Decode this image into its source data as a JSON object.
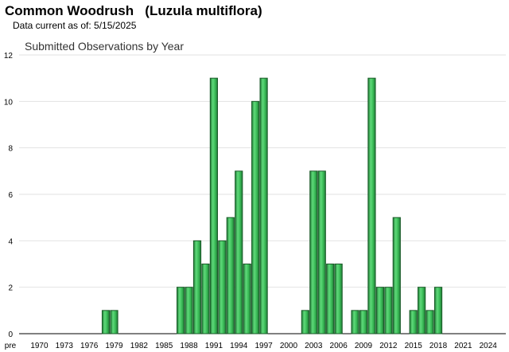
{
  "header": {
    "title": "Common Woodrush   (Luzula multiflora)",
    "data_current": "Data current as of: 5/15/2025"
  },
  "chart_data": {
    "type": "bar",
    "title": "Submitted Observations by Year",
    "xlabel": "",
    "ylabel": "",
    "ylim": [
      0,
      12
    ],
    "yticks": [
      0,
      2,
      4,
      6,
      8,
      10,
      12
    ],
    "grid": true,
    "x_tick_labels": [
      "pre",
      "1970",
      "1973",
      "1976",
      "1979",
      "1982",
      "1985",
      "1988",
      "1991",
      "1994",
      "1997",
      "2000",
      "2003",
      "2006",
      "2009",
      "2012",
      "2015",
      "2018",
      "2021",
      "2024"
    ],
    "categories": [
      "pre",
      "1970",
      "1971",
      "1972",
      "1973",
      "1974",
      "1975",
      "1976",
      "1977",
      "1978",
      "1979",
      "1980",
      "1981",
      "1982",
      "1983",
      "1984",
      "1985",
      "1986",
      "1987",
      "1988",
      "1989",
      "1990",
      "1991",
      "1992",
      "1993",
      "1994",
      "1995",
      "1996",
      "1997",
      "1998",
      "1999",
      "2000",
      "2001",
      "2002",
      "2003",
      "2004",
      "2005",
      "2006",
      "2007",
      "2008",
      "2009",
      "2010",
      "2011",
      "2012",
      "2013",
      "2014",
      "2015",
      "2016",
      "2017",
      "2018",
      "2019",
      "2020",
      "2021",
      "2022",
      "2023",
      "2024",
      "2025"
    ],
    "values": [
      0,
      0,
      0,
      0,
      0,
      0,
      0,
      0,
      0,
      1,
      1,
      0,
      0,
      0,
      0,
      0,
      0,
      0,
      2,
      2,
      4,
      3,
      11,
      4,
      5,
      7,
      3,
      10,
      11,
      0,
      0,
      0,
      0,
      1,
      7,
      7,
      3,
      3,
      0,
      1,
      1,
      11,
      2,
      2,
      5,
      0,
      1,
      2,
      1,
      2,
      0,
      0,
      0,
      0,
      0,
      0,
      0
    ],
    "bar_color": "#3dbf5a",
    "bar_edge_color": "#1a5a28"
  }
}
